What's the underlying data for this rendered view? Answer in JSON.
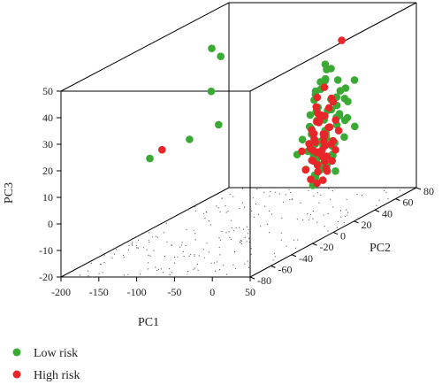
{
  "chart_data": {
    "type": "scatter",
    "projection": "3d",
    "axes": {
      "pc1": {
        "label": "PC1",
        "ticks": [
          -200,
          -150,
          -100,
          -50,
          0,
          50
        ],
        "lim": [
          -200,
          50
        ]
      },
      "pc2": {
        "label": "PC2",
        "ticks": [
          -80,
          -60,
          -40,
          -20,
          0,
          20,
          40,
          60,
          80
        ],
        "lim": [
          -80,
          80
        ]
      },
      "pc3": {
        "label": "PC3",
        "ticks": [
          -20,
          -10,
          0,
          10,
          20,
          30,
          40,
          50
        ],
        "lim": [
          -20,
          50
        ]
      }
    },
    "legend": {
      "placement": "bottom-left"
    },
    "series": [
      {
        "name": "Low risk",
        "color": "#3aaa35",
        "points": [
          [
            -145,
            25,
            44
          ],
          [
            -133,
            25,
            41
          ],
          [
            -125,
            10,
            31
          ],
          [
            -140,
            0,
            15
          ],
          [
            -118,
            12,
            18
          ],
          [
            -165,
            -20,
            12
          ],
          [
            5,
            25,
            38
          ],
          [
            10,
            27,
            36
          ],
          [
            0,
            30,
            35
          ],
          [
            12,
            20,
            33
          ],
          [
            8,
            35,
            30
          ],
          [
            15,
            18,
            34
          ],
          [
            3,
            22,
            32
          ],
          [
            -5,
            28,
            28
          ],
          [
            18,
            30,
            27
          ],
          [
            6,
            15,
            30
          ],
          [
            14,
            24,
            25
          ],
          [
            0,
            18,
            26
          ],
          [
            9,
            33,
            24
          ],
          [
            20,
            20,
            22
          ],
          [
            -3,
            24,
            22
          ],
          [
            11,
            12,
            23
          ],
          [
            4,
            28,
            20
          ],
          [
            16,
            16,
            19
          ],
          [
            1,
            20,
            18
          ],
          [
            13,
            30,
            17
          ],
          [
            7,
            10,
            17
          ],
          [
            -6,
            18,
            16
          ],
          [
            19,
            26,
            15
          ],
          [
            2,
            14,
            14
          ],
          [
            10,
            22,
            13
          ],
          [
            -2,
            30,
            12
          ],
          [
            15,
            10,
            12
          ],
          [
            5,
            26,
            10
          ],
          [
            12,
            18,
            9
          ],
          [
            0,
            12,
            8
          ],
          [
            8,
            32,
            7
          ],
          [
            17,
            14,
            6
          ],
          [
            -4,
            22,
            5
          ],
          [
            6,
            16,
            4
          ],
          [
            11,
            28,
            3
          ],
          [
            3,
            8,
            2
          ],
          [
            14,
            20,
            1
          ],
          [
            -1,
            26,
            0
          ],
          [
            9,
            12,
            -1
          ],
          [
            20,
            24,
            -2
          ],
          [
            2,
            18,
            -3
          ],
          [
            12,
            8,
            -4
          ],
          [
            25,
            30,
            28
          ],
          [
            28,
            22,
            20
          ],
          [
            30,
            18,
            24
          ],
          [
            -8,
            20,
            20
          ],
          [
            22,
            34,
            16
          ],
          [
            24,
            12,
            14
          ],
          [
            -10,
            14,
            12
          ],
          [
            26,
            28,
            10
          ],
          [
            -7,
            30,
            8
          ],
          [
            27,
            16,
            6
          ],
          [
            -9,
            24,
            4
          ],
          [
            23,
            8,
            2
          ],
          [
            35,
            25,
            24
          ],
          [
            38,
            20,
            18
          ],
          [
            40,
            28,
            14
          ],
          [
            10,
            40,
            22
          ],
          [
            -12,
            28,
            26
          ],
          [
            30,
            35,
            30
          ],
          [
            18,
            6,
            12
          ],
          [
            -6,
            6,
            8
          ],
          [
            32,
            12,
            10
          ],
          [
            6,
            38,
            16
          ]
        ]
      },
      {
        "name": "High risk",
        "color": "#e8262a",
        "points": [
          [
            -190,
            10,
            9
          ],
          [
            20,
            30,
            46
          ],
          [
            8,
            22,
            30
          ],
          [
            4,
            18,
            27
          ],
          [
            12,
            26,
            25
          ],
          [
            0,
            20,
            23
          ],
          [
            10,
            14,
            22
          ],
          [
            6,
            28,
            21
          ],
          [
            14,
            18,
            20
          ],
          [
            2,
            24,
            19
          ],
          [
            9,
            16,
            18
          ],
          [
            -2,
            22,
            17
          ],
          [
            12,
            30,
            16
          ],
          [
            5,
            12,
            16
          ],
          [
            15,
            22,
            15
          ],
          [
            1,
            16,
            14
          ],
          [
            8,
            26,
            14
          ],
          [
            11,
            10,
            13
          ],
          [
            -3,
            20,
            13
          ],
          [
            13,
            18,
            12
          ],
          [
            4,
            24,
            12
          ],
          [
            7,
            14,
            11
          ],
          [
            0,
            28,
            11
          ],
          [
            10,
            20,
            10
          ],
          [
            -4,
            16,
            10
          ],
          [
            14,
            26,
            9
          ],
          [
            3,
            12,
            9
          ],
          [
            9,
            22,
            8
          ],
          [
            16,
            14,
            8
          ],
          [
            -1,
            18,
            7
          ],
          [
            6,
            30,
            7
          ],
          [
            12,
            16,
            6
          ],
          [
            2,
            20,
            6
          ],
          [
            8,
            10,
            5
          ],
          [
            -5,
            24,
            5
          ],
          [
            11,
            22,
            4
          ],
          [
            4,
            14,
            4
          ],
          [
            14,
            18,
            3
          ],
          [
            0,
            26,
            3
          ],
          [
            7,
            16,
            2
          ],
          [
            10,
            28,
            1
          ],
          [
            -3,
            12,
            1
          ],
          [
            13,
            20,
            0
          ],
          [
            5,
            18,
            -1
          ],
          [
            9,
            24,
            -2
          ],
          [
            1,
            14,
            -3
          ],
          [
            12,
            12,
            -4
          ],
          [
            6,
            22,
            -5
          ],
          [
            -6,
            28,
            18
          ],
          [
            18,
            10,
            20
          ],
          [
            3,
            34,
            22
          ],
          [
            16,
            30,
            12
          ],
          [
            -8,
            12,
            8
          ],
          [
            20,
            24,
            6
          ]
        ]
      }
    ]
  }
}
